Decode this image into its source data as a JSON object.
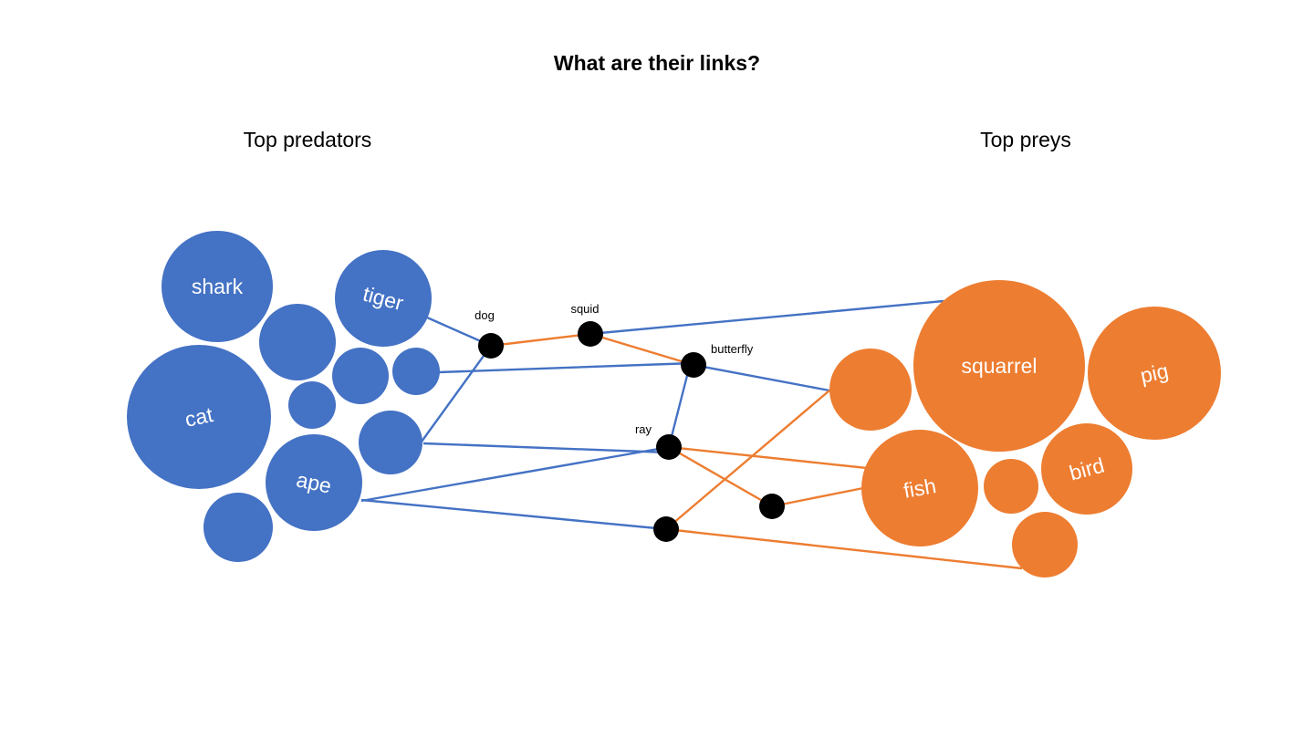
{
  "title": "What are their links?",
  "groups": {
    "predators": "Top predators",
    "preys": "Top preys"
  },
  "colors": {
    "predator": "#4472C4",
    "prey": "#ED7D31",
    "node": "#000000"
  },
  "predators": [
    "shark",
    "tiger",
    "cat",
    "ape"
  ],
  "preys": [
    "squarrel",
    "pig",
    "fish",
    "bird"
  ],
  "nodes": [
    "dog",
    "squid",
    "butterfly",
    "ray"
  ]
}
